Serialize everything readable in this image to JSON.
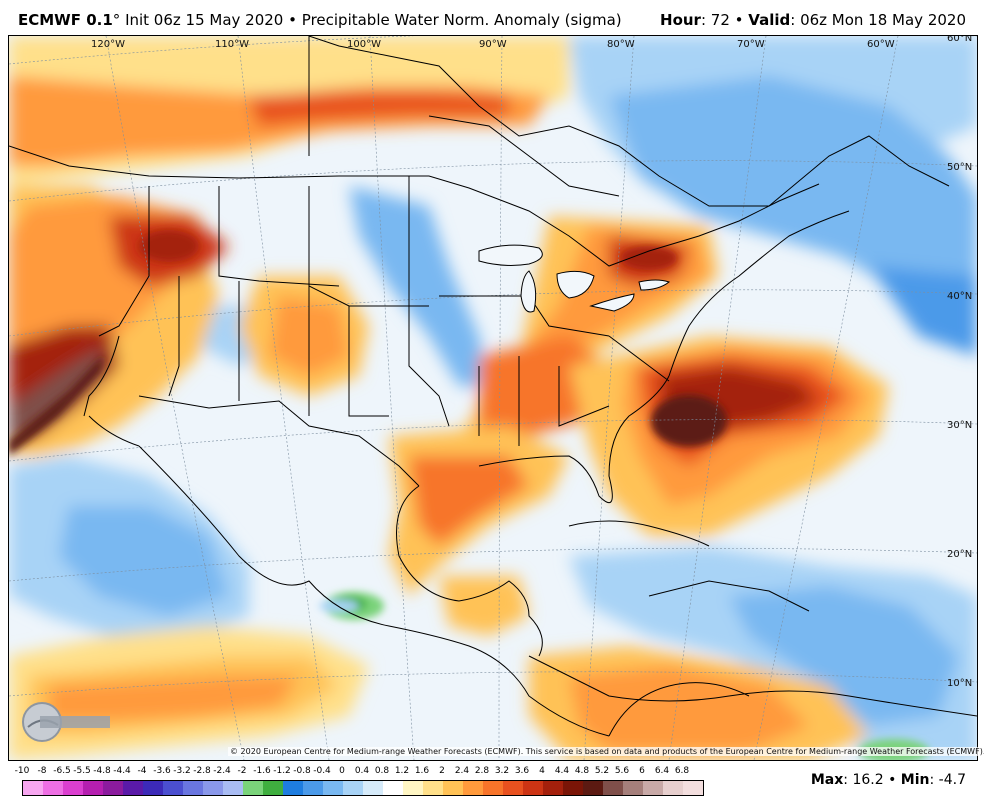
{
  "header": {
    "model": "ECMWF 0.1",
    "model_suffix": "°",
    "init": "Init 06z 15 May 2020",
    "sep": "•",
    "product": "Precipitable Water Norm. Anomaly (sigma)",
    "hour_label": "Hour",
    "hour_value": "72",
    "valid_label": "Valid",
    "valid_value": "06z Mon 18 May 2020"
  },
  "map": {
    "longitude_labels": [
      "120°W",
      "110°W",
      "100°W",
      "90°W",
      "80°W",
      "70°W",
      "60°W"
    ],
    "latitude_labels": [
      "60°N",
      "50°N",
      "40°N",
      "30°N",
      "20°N",
      "10°N"
    ]
  },
  "copyright": "© 2020 European Centre for Medium-range Weather Forecasts (ECMWF). This service is based on data and products of the European Centre for Medium-range Weather Forecasts (ECMWF).",
  "logo": {
    "text": "WEATHERBELL",
    "icon": "weatherbell-logo"
  },
  "legend": {
    "ticks": [
      "-10",
      "-8",
      "-6.5",
      "-5.5",
      "-4.8",
      "-4.4",
      "-4",
      "-3.6",
      "-3.2",
      "-2.8",
      "-2.4",
      "-2",
      "-1.6",
      "-1.2",
      "-0.8",
      "-0.4",
      "0",
      "0.4",
      "0.8",
      "1.2",
      "1.6",
      "2",
      "2.4",
      "2.8",
      "3.2",
      "3.6",
      "4",
      "4.4",
      "4.8",
      "5.2",
      "5.6",
      "6",
      "6.4",
      "6.8"
    ],
    "colors": [
      "#f7a6f0",
      "#ee6fe4",
      "#db3fd0",
      "#b51fb0",
      "#8b1b9e",
      "#5a1aa8",
      "#3c2ab8",
      "#4b4fd0",
      "#6a76e0",
      "#8a98ea",
      "#a9bcf3",
      "#7ad37a",
      "#3fae3f",
      "#1e7de0",
      "#4b9ae9",
      "#79b8f1",
      "#a8d3f6",
      "#d6ebfa",
      "#ffffff",
      "#fff6c4",
      "#ffe08a",
      "#ffc256",
      "#ff9a3c",
      "#f7742a",
      "#e8511f",
      "#cc3414",
      "#a4200c",
      "#7a1507",
      "#5c1a12",
      "#7f4f4a",
      "#a57f7b",
      "#c8a9a7",
      "#e7cfce",
      "#f3dede"
    ]
  },
  "stats": {
    "max_label": "Max",
    "max_value": "16.2",
    "min_label": "Min",
    "min_value": "-4.7",
    "sep": "•"
  }
}
